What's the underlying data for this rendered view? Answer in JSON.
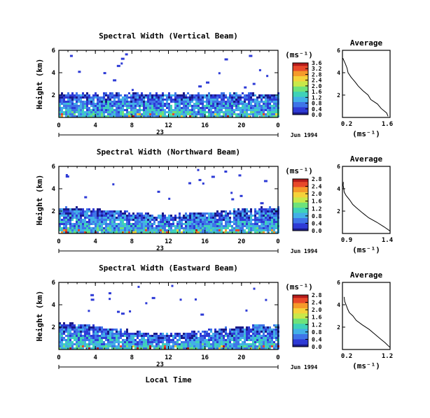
{
  "chart_data": [
    {
      "type": "heatmap",
      "title": "Spectral Width (Vertical Beam)",
      "ylabel": "Height (km)",
      "xlim": [
        0,
        24
      ],
      "ylim": [
        0,
        6
      ],
      "xticks": [
        "0",
        "4",
        "8",
        "12",
        "16",
        "20",
        "0"
      ],
      "yticks": [
        "2",
        "4",
        "6"
      ],
      "date_marker": "23",
      "date_label": "Jun 1994",
      "colorbar": {
        "unit": "(ms⁻¹)",
        "min": 0.0,
        "max": 3.6,
        "ticks": [
          "3.6",
          "3.2",
          "2.8",
          "2.4",
          "2.0",
          "1.6",
          "1.2",
          "0.8",
          "0.4",
          "0.0"
        ]
      },
      "echo_top_km": [
        2.2,
        2.2,
        2.2,
        2.2,
        2.2,
        2.2,
        2.2,
        2.2,
        2.2,
        2.2,
        2.2,
        2.2,
        2.2
      ],
      "echo_top_times": [
        0,
        2,
        4,
        6,
        8,
        10,
        12,
        14,
        16,
        18,
        20,
        22,
        24
      ],
      "profile": {
        "title": "Average",
        "xlabel": "(ms⁻¹)",
        "xlim": [
          0.2,
          1.6
        ],
        "ylim": [
          0,
          6
        ],
        "xticks": [
          "0.2",
          "1.6"
        ],
        "yticks": [
          "2",
          "4",
          "6"
        ],
        "width_ms": [
          1.55,
          1.5,
          1.35,
          1.25,
          1.05,
          0.95,
          0.8,
          0.65,
          0.55,
          0.45,
          0.38,
          0.32,
          0.28,
          0.25,
          0.22
        ],
        "height_km": [
          0.1,
          0.4,
          0.8,
          1.2,
          1.6,
          2.0,
          2.4,
          2.8,
          3.2,
          3.6,
          4.0,
          4.4,
          4.8,
          5.1,
          5.3
        ]
      }
    },
    {
      "type": "heatmap",
      "title": "Spectral Width (Northward Beam)",
      "ylabel": "Height (km)",
      "xlim": [
        0,
        24
      ],
      "ylim": [
        0,
        6
      ],
      "xticks": [
        "0",
        "4",
        "8",
        "12",
        "16",
        "20",
        "0"
      ],
      "yticks": [
        "2",
        "4",
        "6"
      ],
      "date_marker": "23",
      "date_label": "Jun 1994",
      "colorbar": {
        "unit": "(ms⁻¹)",
        "min": 0.0,
        "max": 2.8,
        "ticks": [
          "2.8",
          "2.4",
          "2.0",
          "1.6",
          "1.2",
          "0.8",
          "0.4",
          "0.0"
        ]
      },
      "echo_top_km": [
        2.4,
        2.4,
        2.3,
        2.1,
        1.9,
        1.8,
        1.8,
        1.9,
        2.0,
        2.1,
        2.3,
        2.4,
        2.5
      ],
      "echo_top_times": [
        0,
        2,
        4,
        6,
        8,
        10,
        12,
        14,
        16,
        18,
        20,
        22,
        24
      ],
      "profile": {
        "title": "Average",
        "xlabel": "(ms⁻¹)",
        "xlim": [
          0.9,
          1.4
        ],
        "ylim": [
          0,
          6
        ],
        "xticks": [
          "0.9",
          "1.4"
        ],
        "yticks": [
          "2",
          "4",
          "6"
        ],
        "width_ms": [
          1.4,
          1.33,
          1.26,
          1.18,
          1.12,
          1.06,
          1.01,
          0.97,
          0.94,
          0.92,
          0.91,
          0.9,
          0.91
        ],
        "height_km": [
          0.2,
          0.6,
          1.0,
          1.4,
          1.8,
          2.2,
          2.6,
          3.0,
          3.4,
          3.7,
          4.0,
          4.3,
          4.6
        ]
      }
    },
    {
      "type": "heatmap",
      "title": "Spectral Width (Eastward Beam)",
      "ylabel": "Height (km)",
      "xlabel": "Local Time",
      "xlim": [
        0,
        24
      ],
      "ylim": [
        0,
        6
      ],
      "xticks": [
        "0",
        "4",
        "8",
        "12",
        "16",
        "20",
        "0"
      ],
      "yticks": [
        "2",
        "4",
        "6"
      ],
      "date_marker": "23",
      "date_label": "Jun 1994",
      "colorbar": {
        "unit": "(ms⁻¹)",
        "min": 0.0,
        "max": 2.8,
        "ticks": [
          "2.8",
          "2.4",
          "2.0",
          "1.6",
          "1.2",
          "0.8",
          "0.4",
          "0.0"
        ]
      },
      "echo_top_km": [
        2.5,
        2.4,
        2.2,
        2.0,
        1.7,
        1.5,
        1.5,
        1.6,
        1.8,
        2.0,
        2.1,
        2.2,
        2.3
      ],
      "echo_top_times": [
        0,
        2,
        4,
        6,
        8,
        10,
        12,
        14,
        16,
        18,
        20,
        22,
        24
      ],
      "profile": {
        "title": "Average",
        "xlabel": "(ms⁻¹)",
        "xlim": [
          0.2,
          1.2
        ],
        "ylim": [
          0,
          6
        ],
        "xticks": [
          "0.2",
          "1.2"
        ],
        "yticks": [
          "2",
          "4",
          "6"
        ],
        "width_ms": [
          1.2,
          1.1,
          0.98,
          0.88,
          0.76,
          0.62,
          0.5,
          0.42,
          0.35,
          0.3,
          0.27,
          0.25,
          0.23
        ],
        "height_km": [
          0.2,
          0.6,
          1.0,
          1.4,
          1.8,
          2.2,
          2.6,
          3.0,
          3.3,
          3.6,
          3.9,
          4.3,
          4.7
        ]
      }
    }
  ],
  "colors": {
    "scale": [
      "#1a1a8a",
      "#2e3bd6",
      "#3f74e8",
      "#43b0e6",
      "#3fd2b8",
      "#6ee27a",
      "#c8e84a",
      "#f5d23a",
      "#f59a2a",
      "#e8482a",
      "#b41a1a"
    ]
  }
}
